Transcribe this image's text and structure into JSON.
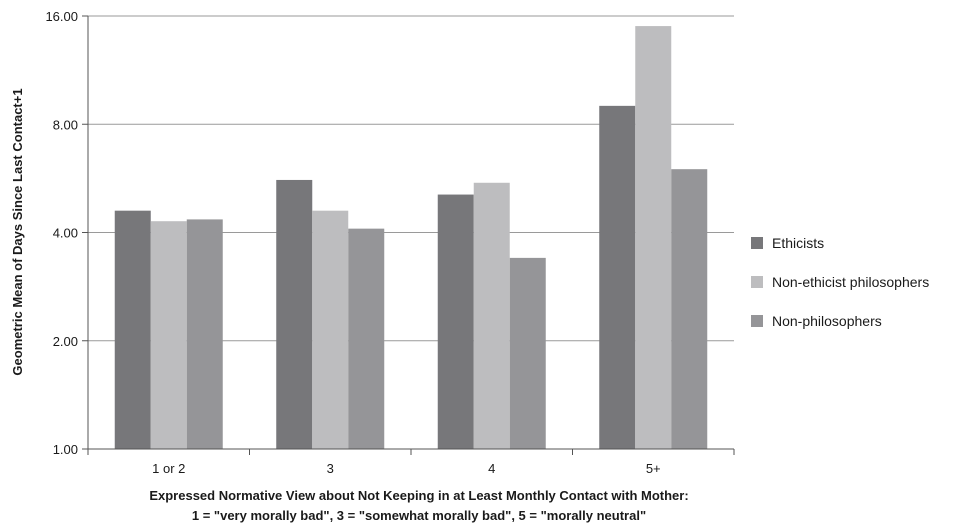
{
  "chart_data": {
    "type": "bar",
    "scale": "log2",
    "categories": [
      "1 or 2",
      "3",
      "4",
      "5+"
    ],
    "series": [
      {
        "name": "Ethicists",
        "color": "#77777a",
        "values": [
          4.6,
          5.6,
          5.1,
          9.0
        ]
      },
      {
        "name": "Non-ethicist philosophers",
        "color": "#bdbdbf",
        "values": [
          4.3,
          4.6,
          5.5,
          15.0
        ]
      },
      {
        "name": "Non-philosophers",
        "color": "#959598",
        "values": [
          4.35,
          4.1,
          3.4,
          6.0
        ]
      }
    ],
    "ylabel": "Geometric Mean of Days Since Last Contact+1",
    "xlabel_lines": [
      "Expressed Normative View about Not Keeping in at Least Monthly Contact with Mother:",
      "1 = \"very morally bad\", 3 = \"somewhat morally bad\", 5 = \"morally neutral\""
    ],
    "ylim": [
      1,
      16
    ],
    "yticks": [
      1,
      2,
      4,
      8,
      16
    ],
    "ytick_labels": [
      "1.00",
      "2.00",
      "4.00",
      "8.00",
      "16.00"
    ],
    "grid": true,
    "legend_position": "right"
  }
}
